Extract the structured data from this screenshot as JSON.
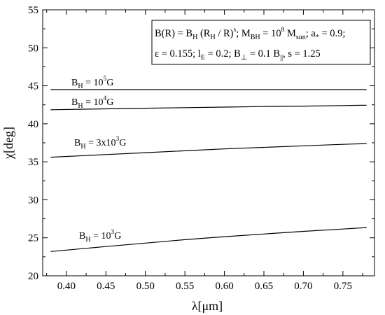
{
  "chart_data": {
    "type": "line",
    "xlabel": "λ[μm]",
    "ylabel": "χ[deg]",
    "xlim": [
      0.37,
      0.79
    ],
    "ylim": [
      20,
      55
    ],
    "xticks": [
      "0.40",
      "0.45",
      "0.50",
      "0.55",
      "0.60",
      "0.65",
      "0.70",
      "0.75"
    ],
    "xtick_values": [
      0.4,
      0.45,
      0.5,
      0.55,
      0.6,
      0.65,
      0.7,
      0.75
    ],
    "yticks": [
      "20",
      "25",
      "30",
      "35",
      "40",
      "45",
      "50",
      "55"
    ],
    "ytick_values": [
      20,
      25,
      30,
      35,
      40,
      45,
      50,
      55
    ],
    "grid": false,
    "line_color": "#000000",
    "annotation": {
      "line1": "B(R) = B_H (R_H / R)^s; M_BH = 10^8 M_sun; a_* = 0.9;",
      "line2": "ε = 0.155; l_E = 0.2; B_⊥ = 0.1 B_||, s = 1.25"
    },
    "series": [
      {
        "name": "B_H = 10^5G",
        "x": [
          0.38,
          0.45,
          0.5,
          0.55,
          0.6,
          0.65,
          0.7,
          0.75,
          0.78
        ],
        "y": [
          44.5,
          44.5,
          44.5,
          44.5,
          44.5,
          44.5,
          44.5,
          44.5,
          44.5
        ]
      },
      {
        "name": "B_H = 10^4G",
        "x": [
          0.38,
          0.45,
          0.5,
          0.55,
          0.6,
          0.65,
          0.7,
          0.75,
          0.78
        ],
        "y": [
          41.85,
          41.97,
          42.05,
          42.12,
          42.2,
          42.27,
          42.33,
          42.4,
          42.45
        ]
      },
      {
        "name": "B_H = 3x10^3G",
        "x": [
          0.38,
          0.45,
          0.5,
          0.55,
          0.6,
          0.65,
          0.7,
          0.75,
          0.78
        ],
        "y": [
          35.6,
          35.95,
          36.2,
          36.45,
          36.7,
          36.9,
          37.1,
          37.3,
          37.4
        ]
      },
      {
        "name": "B_H = 10^3G",
        "x": [
          0.38,
          0.45,
          0.5,
          0.55,
          0.6,
          0.65,
          0.7,
          0.75,
          0.78
        ],
        "y": [
          23.2,
          23.85,
          24.3,
          24.75,
          25.15,
          25.5,
          25.85,
          26.15,
          26.35
        ]
      }
    ]
  }
}
